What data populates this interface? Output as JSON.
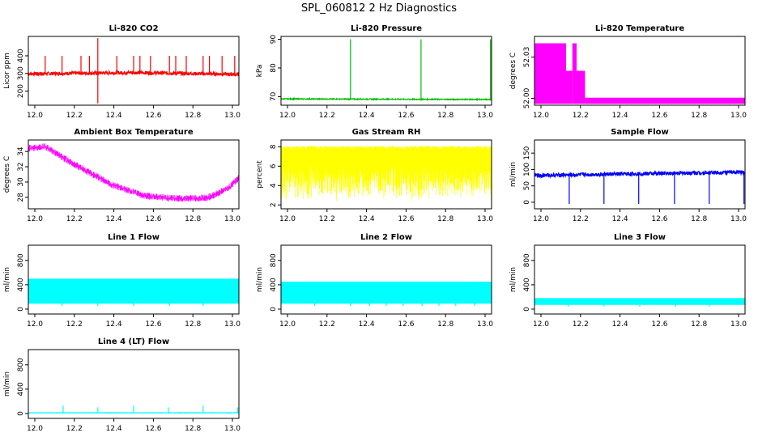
{
  "figure_title": "SPL_060812  2 Hz Diagnostics",
  "chart_data": [
    {
      "type": "line",
      "title": "Li-820 CO2",
      "ylabel": "Licor ppm",
      "color": "#ff0000",
      "xlim": [
        12.0,
        13.0
      ],
      "ylim": [
        120,
        510
      ],
      "xticks": [
        12.0,
        12.2,
        12.4,
        12.6,
        12.8,
        13.0
      ],
      "yticks": [
        200,
        300,
        400
      ],
      "baseline": 300,
      "noise": 10,
      "trend": [
        [
          12.0,
          298
        ],
        [
          12.5,
          305
        ],
        [
          13.0,
          295
        ]
      ],
      "spikes": [
        [
          12.33,
          500
        ],
        [
          12.33,
          130
        ],
        [
          12.08,
          400
        ],
        [
          12.16,
          400
        ],
        [
          12.25,
          400
        ],
        [
          12.29,
          400
        ],
        [
          12.42,
          400
        ],
        [
          12.5,
          400
        ],
        [
          12.53,
          400
        ],
        [
          12.58,
          400
        ],
        [
          12.67,
          400
        ],
        [
          12.7,
          400
        ],
        [
          12.75,
          400
        ],
        [
          12.83,
          400
        ],
        [
          12.86,
          400
        ],
        [
          12.92,
          400
        ],
        [
          12.98,
          400
        ]
      ]
    },
    {
      "type": "line",
      "title": "Li-820 Pressure",
      "ylabel": "kPa",
      "color": "#00bb00",
      "xlim": [
        12.0,
        13.0
      ],
      "ylim": [
        67,
        91
      ],
      "xticks": [
        12.0,
        12.2,
        12.4,
        12.6,
        12.8,
        13.0
      ],
      "yticks": [
        70,
        80,
        90
      ],
      "baseline": 69,
      "noise": 0.15,
      "trend": [
        [
          12.0,
          69.2
        ],
        [
          13.0,
          69.0
        ]
      ],
      "spikes": [
        [
          12.33,
          90
        ],
        [
          12.665,
          90
        ],
        [
          12.995,
          90
        ]
      ]
    },
    {
      "type": "area",
      "title": "Li-820 Temperature",
      "ylabel": "degrees C",
      "color": "#ff00ff",
      "xlim": [
        12.0,
        13.0
      ],
      "ylim": [
        51.995,
        52.045
      ],
      "xticks": [
        12.0,
        12.2,
        12.4,
        12.6,
        12.8,
        13.0
      ],
      "yticks": [
        52.0,
        52.03
      ],
      "ytick_labels": [
        "52.00",
        "52.03"
      ],
      "segments": [
        [
          12.0,
          12.15,
          52.04
        ],
        [
          12.15,
          12.18,
          52.02
        ],
        [
          12.18,
          12.2,
          52.04
        ],
        [
          12.2,
          12.24,
          52.02
        ],
        [
          12.24,
          13.0,
          52.0
        ]
      ]
    },
    {
      "type": "line",
      "title": "Ambient Box Temperature",
      "ylabel": "degrees C",
      "color": "#ff00ff",
      "xlim": [
        12.0,
        13.0
      ],
      "ylim": [
        26.5,
        35.5
      ],
      "xticks": [
        12.0,
        12.2,
        12.4,
        12.6,
        12.8,
        13.0
      ],
      "yticks": [
        28,
        30,
        32,
        34
      ],
      "band": [
        [
          12.0,
          34.5
        ],
        [
          12.08,
          34.7
        ],
        [
          12.2,
          32.7
        ],
        [
          12.4,
          29.7
        ],
        [
          12.55,
          28.3
        ],
        [
          12.7,
          27.9
        ],
        [
          12.85,
          28.0
        ],
        [
          12.95,
          29.3
        ],
        [
          13.0,
          30.6
        ]
      ],
      "noise": 0.55
    },
    {
      "type": "line",
      "title": "Gas Stream RH",
      "ylabel": "percent",
      "color": "#ffff00",
      "xlim": [
        12.0,
        13.0
      ],
      "ylim": [
        1.6,
        8.7
      ],
      "xticks": [
        12.0,
        12.2,
        12.4,
        12.6,
        12.8,
        13.0
      ],
      "yticks": [
        2,
        4,
        6,
        8
      ],
      "upper": 8.1,
      "lower": 2.5
    },
    {
      "type": "line",
      "title": "Sample Flow",
      "ylabel": "ml/min",
      "color": "#0000ff",
      "xlim": [
        12.0,
        13.0
      ],
      "ylim": [
        -20,
        190
      ],
      "xticks": [
        12.0,
        12.2,
        12.4,
        12.6,
        12.8,
        13.0
      ],
      "yticks": [
        0,
        50,
        100,
        150
      ],
      "baseline": 85,
      "noise": 6,
      "trend": [
        [
          12.0,
          82
        ],
        [
          13.0,
          92
        ]
      ],
      "spikes": [
        [
          12.165,
          -5
        ],
        [
          12.33,
          -5
        ],
        [
          12.495,
          -5
        ],
        [
          12.665,
          -5
        ],
        [
          12.83,
          -5
        ],
        [
          12.995,
          -5
        ]
      ]
    },
    {
      "type": "line",
      "title": "Line 1 Flow",
      "ylabel": "ml/min",
      "color": "#00ffff",
      "xlim": [
        12.0,
        13.0
      ],
      "ylim": [
        -80,
        1050
      ],
      "xticks": [
        12.0,
        12.2,
        12.4,
        12.6,
        12.8,
        13.0
      ],
      "yticks": [
        0,
        400,
        800
      ],
      "upper": 500,
      "lower": 90,
      "gaps": [
        12.16,
        12.33,
        12.5,
        12.67,
        12.83
      ]
    },
    {
      "type": "line",
      "title": "Line 2 Flow",
      "ylabel": "ml/min",
      "color": "#00ffff",
      "xlim": [
        12.0,
        13.0
      ],
      "ylim": [
        -80,
        1050
      ],
      "xticks": [
        12.0,
        12.2,
        12.4,
        12.6,
        12.8,
        13.0
      ],
      "yticks": [
        0,
        400,
        800
      ],
      "upper": 450,
      "lower": 90,
      "gaps": [
        12.16,
        12.33,
        12.42,
        12.5,
        12.58,
        12.67,
        12.75,
        12.83,
        12.92
      ]
    },
    {
      "type": "line",
      "title": "Line 3 Flow",
      "ylabel": "ml/min",
      "color": "#00ffff",
      "xlim": [
        12.0,
        13.0
      ],
      "ylim": [
        -80,
        1050
      ],
      "xticks": [
        12.0,
        12.2,
        12.4,
        12.6,
        12.8,
        13.0
      ],
      "yticks": [
        0,
        400,
        800
      ],
      "upper": 180,
      "lower": 70,
      "gaps": [
        12.16,
        12.33,
        12.5,
        12.67,
        12.83
      ]
    },
    {
      "type": "line",
      "title": "Line 4 (LT) Flow",
      "ylabel": "ml/min",
      "color": "#00ffff",
      "xlim": [
        12.0,
        13.0
      ],
      "ylim": [
        -80,
        1050
      ],
      "xticks": [
        12.0,
        12.2,
        12.4,
        12.6,
        12.8,
        13.0
      ],
      "yticks": [
        0,
        400,
        800
      ],
      "baseline": 12,
      "noise": 3,
      "trend": [
        [
          12.0,
          12
        ],
        [
          13.0,
          12
        ]
      ],
      "spikes": [
        [
          12.165,
          130
        ],
        [
          12.33,
          100
        ],
        [
          12.5,
          130
        ],
        [
          12.665,
          100
        ],
        [
          12.83,
          130
        ],
        [
          12.995,
          100
        ]
      ]
    }
  ]
}
